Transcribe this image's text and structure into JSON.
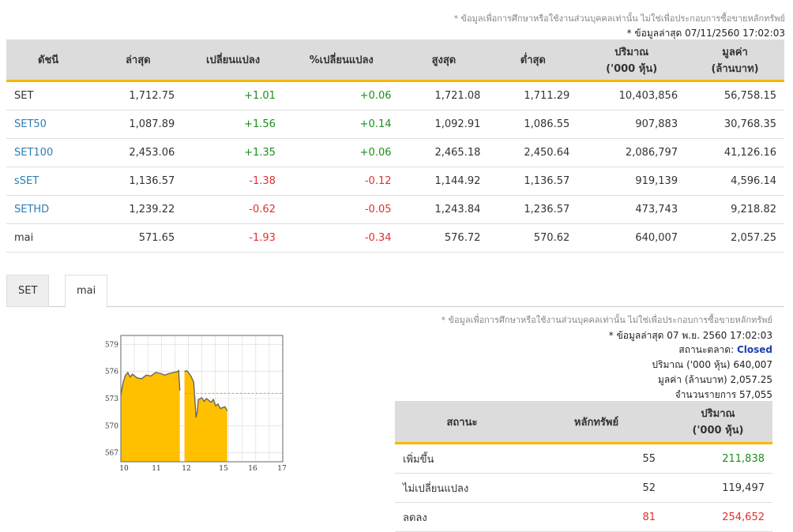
{
  "header": {
    "disclaimer": "* ข้อมูลเพื่อการศึกษาหรือใช้งานส่วนบุคคลเท่านั้น ไม่ใช่เพื่อประกอบการซื้อขายหลักทรัพย์",
    "last_update": "* ข้อมูลล่าสุด 07/11/2560 17:02:03"
  },
  "index_table": {
    "columns": [
      "ดัชนี",
      "ล่าสุด",
      "เปลี่ยนแปลง",
      "%เปลี่ยนแปลง",
      "สูงสุด",
      "ต่ำสุด",
      "ปริมาณ\n('000 หุ้น)",
      "มูลค่า\n(ล้านบาท)"
    ],
    "rows": [
      {
        "name": "SET",
        "last": "1,712.75",
        "chg": "+1.01",
        "pchg": "+0.06",
        "high": "1,721.08",
        "low": "1,711.29",
        "vol": "10,403,856",
        "val": "56,758.15",
        "dir": "up",
        "link": false
      },
      {
        "name": "SET50",
        "last": "1,087.89",
        "chg": "+1.56",
        "pchg": "+0.14",
        "high": "1,092.91",
        "low": "1,086.55",
        "vol": "907,883",
        "val": "30,768.35",
        "dir": "up",
        "link": true
      },
      {
        "name": "SET100",
        "last": "2,453.06",
        "chg": "+1.35",
        "pchg": "+0.06",
        "high": "2,465.18",
        "low": "2,450.64",
        "vol": "2,086,797",
        "val": "41,126.16",
        "dir": "up",
        "link": true
      },
      {
        "name": "sSET",
        "last": "1,136.57",
        "chg": "-1.38",
        "pchg": "-0.12",
        "high": "1,144.92",
        "low": "1,136.57",
        "vol": "919,139",
        "val": "4,596.14",
        "dir": "down",
        "link": true
      },
      {
        "name": "SETHD",
        "last": "1,239.22",
        "chg": "-0.62",
        "pchg": "-0.05",
        "high": "1,243.84",
        "low": "1,236.57",
        "vol": "473,743",
        "val": "9,218.82",
        "dir": "down",
        "link": true
      },
      {
        "name": "mai",
        "last": "571.65",
        "chg": "-1.93",
        "pchg": "-0.34",
        "high": "576.72",
        "low": "570.62",
        "vol": "640,007",
        "val": "2,057.25",
        "dir": "down",
        "link": false
      }
    ]
  },
  "tabs": [
    {
      "label": "SET",
      "active": false
    },
    {
      "label": "mai",
      "active": true
    }
  ],
  "market_info": {
    "disclaimer": "* ข้อมูลเพื่อการศึกษาหรือใช้งานส่วนบุคคลเท่านั้น ไม่ใช่เพื่อประกอบการซื้อขายหลักทรัพย์",
    "last_update": "* ข้อมูลล่าสุด 07 พ.ย. 2560 17:02:03",
    "status_label": "สถานะตลาด:",
    "status_value": "Closed",
    "volume": "ปริมาณ ('000 หุ้น)  640,007",
    "value": "มูลค่า (ล้านบาท)  2,057.25",
    "deals": "จำนวนรายการ  57,055"
  },
  "status_table": {
    "columns": [
      "สถานะ",
      "หลักทรัพย์",
      "ปริมาณ\n('000 หุ้น)"
    ],
    "rows": [
      {
        "status": "เพิ่มขึ้น",
        "count": "55",
        "volume": "211,838",
        "dir": "up"
      },
      {
        "status": "ไม่เปลี่ยนแปลง",
        "count": "52",
        "volume": "119,497",
        "dir": "flat"
      },
      {
        "status": "ลดลง",
        "count": "81",
        "volume": "254,652",
        "dir": "down"
      }
    ]
  },
  "colors": {
    "up": "#1c8f1c",
    "down": "#e03030",
    "accent": "#f5b800",
    "area": "#ffc000",
    "link": "#2d7eb5",
    "closed": "#1a3fb0"
  },
  "chart_data": {
    "type": "area",
    "title": "",
    "ylim": [
      566,
      580
    ],
    "yticks": [
      "579",
      "576",
      "573",
      "570",
      "567"
    ],
    "xticks": [
      "10",
      "11",
      "12",
      "15",
      "16",
      "17"
    ],
    "x_range": [
      10,
      17
    ],
    "prev_close": 573.58,
    "gap": [
      12.55,
      12.75
    ],
    "series": [
      {
        "x": [
          10.0,
          10.1,
          10.2,
          10.3,
          10.4,
          10.5,
          10.7,
          10.9,
          11.1,
          11.3,
          11.5,
          11.7,
          11.9,
          12.1,
          12.3,
          12.45,
          12.5,
          12.55
        ],
        "y": [
          573.4,
          574.8,
          575.6,
          575.9,
          575.4,
          575.7,
          575.3,
          575.2,
          575.6,
          575.5,
          575.9,
          575.8,
          575.6,
          575.8,
          575.9,
          576.0,
          576.1,
          573.9
        ]
      },
      {
        "x": [
          12.75,
          12.85,
          12.95,
          13.05,
          13.15,
          13.2,
          13.25,
          13.3,
          13.35,
          13.5,
          13.6,
          13.7,
          13.9,
          14.0,
          14.1,
          14.2,
          14.3,
          14.5,
          14.6
        ],
        "y": [
          576.0,
          576.1,
          575.8,
          575.4,
          574.8,
          573.0,
          570.9,
          571.5,
          572.9,
          573.1,
          572.7,
          573.0,
          572.6,
          572.9,
          572.2,
          572.4,
          571.9,
          572.1,
          571.65
        ]
      }
    ]
  }
}
